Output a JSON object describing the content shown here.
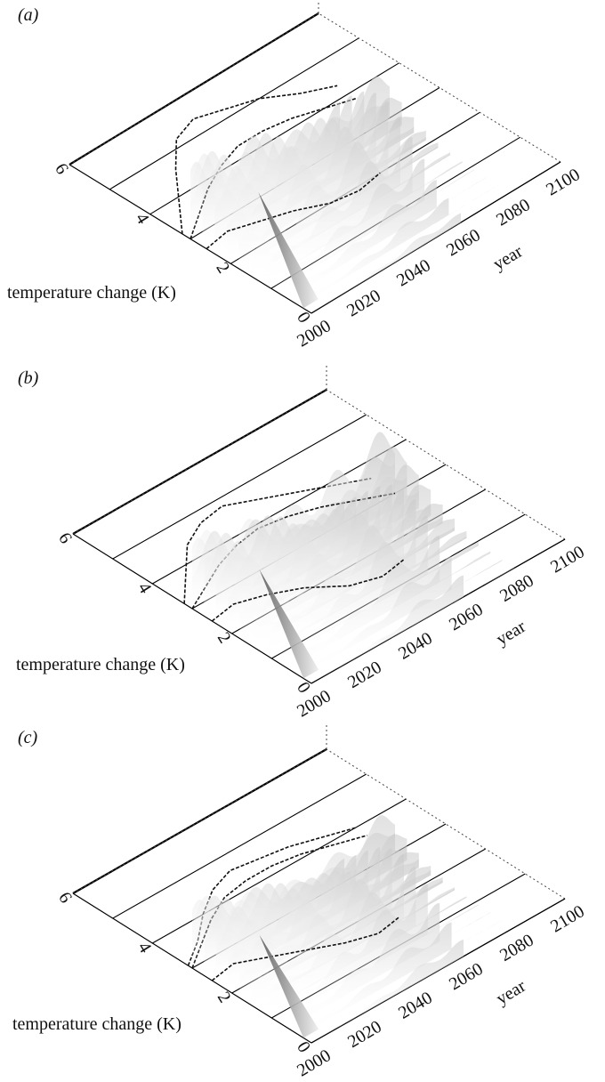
{
  "chart_data": [
    {
      "type": "area",
      "panel_label": "(a)",
      "ylabel": "temperature change (K)",
      "xlabel": "year",
      "y_ticks": [
        "0",
        "2",
        "4",
        "6"
      ],
      "x_ticks": [
        "2000",
        "2020",
        "2040",
        "2060",
        "2080",
        "2100"
      ],
      "y_range": [
        0,
        6
      ],
      "x_range": [
        2000,
        2100
      ],
      "series": [
        {
          "index": 0,
          "years": [
            2000,
            2010,
            2020,
            2030,
            2040,
            2050,
            2060
          ],
          "peak": [
            2.6,
            2.7,
            2.5,
            2.3,
            2.0,
            1.9,
            2.0
          ]
        },
        {
          "index": 1,
          "years": [
            2000,
            2010,
            2020,
            2030,
            2040,
            2050,
            2060,
            2070,
            2080
          ],
          "peak": [
            3.0,
            3.4,
            3.8,
            4.1,
            4.3,
            4.3,
            4.2,
            4.0,
            3.8
          ]
        },
        {
          "index": 2,
          "years": [
            2000,
            2010,
            2020,
            2030,
            2040,
            2050,
            2060,
            2070,
            2080
          ],
          "peak": [
            3.2,
            3.9,
            4.6,
            5.2,
            5.4,
            5.2,
            5.0,
            4.6,
            4.3
          ]
        }
      ]
    },
    {
      "type": "area",
      "panel_label": "(b)",
      "ylabel": "temperature change (K)",
      "xlabel": "year",
      "y_ticks": [
        "0",
        "2",
        "4",
        "6"
      ],
      "x_ticks": [
        "2000",
        "2020",
        "2040",
        "2060",
        "2080",
        "2100"
      ],
      "y_range": [
        0,
        6
      ],
      "x_range": [
        2000,
        2100
      ],
      "series": [
        {
          "index": 0,
          "years": [
            2000,
            2010,
            2020,
            2030,
            2040,
            2050,
            2060
          ],
          "peak": [
            2.5,
            2.6,
            2.4,
            2.1,
            1.6,
            1.4,
            1.5
          ]
        },
        {
          "index": 1,
          "years": [
            2000,
            2010,
            2020,
            2030,
            2040,
            2050,
            2060,
            2070,
            2080
          ],
          "peak": [
            3.0,
            3.3,
            3.6,
            3.8,
            3.9,
            3.8,
            3.6,
            3.3,
            3.0
          ]
        },
        {
          "index": 2,
          "years": [
            2000,
            2010,
            2020,
            2030,
            2040,
            2050,
            2060,
            2070,
            2080
          ],
          "peak": [
            3.2,
            3.8,
            4.4,
            4.7,
            4.8,
            4.5,
            4.2,
            3.9,
            3.6
          ]
        }
      ]
    },
    {
      "type": "area",
      "panel_label": "(c)",
      "ylabel": "temperature change (K)",
      "xlabel": "year",
      "y_ticks": [
        "0",
        "2",
        "4",
        "6"
      ],
      "x_ticks": [
        "2000",
        "2020",
        "2040",
        "2060",
        "2080",
        "2100"
      ],
      "y_range": [
        0,
        6
      ],
      "x_range": [
        2000,
        2100
      ],
      "series": [
        {
          "index": 0,
          "years": [
            2000,
            2010,
            2020,
            2030,
            2040,
            2050,
            2060
          ],
          "peak": [
            2.5,
            2.6,
            2.3,
            2.0,
            1.7,
            1.5,
            1.6
          ]
        },
        {
          "index": 1,
          "years": [
            2000,
            2010,
            2020,
            2030,
            2040,
            2050,
            2060,
            2070,
            2080
          ],
          "peak": [
            3.0,
            3.4,
            3.8,
            4.1,
            4.2,
            4.2,
            4.1,
            3.9,
            3.7
          ]
        },
        {
          "index": 2,
          "years": [
            2000,
            2010,
            2020,
            2030,
            2040,
            2050,
            2060,
            2070,
            2080
          ],
          "peak": [
            3.1,
            3.5,
            4.0,
            4.4,
            4.6,
            4.5,
            4.4,
            4.2,
            4.0
          ]
        }
      ]
    }
  ]
}
